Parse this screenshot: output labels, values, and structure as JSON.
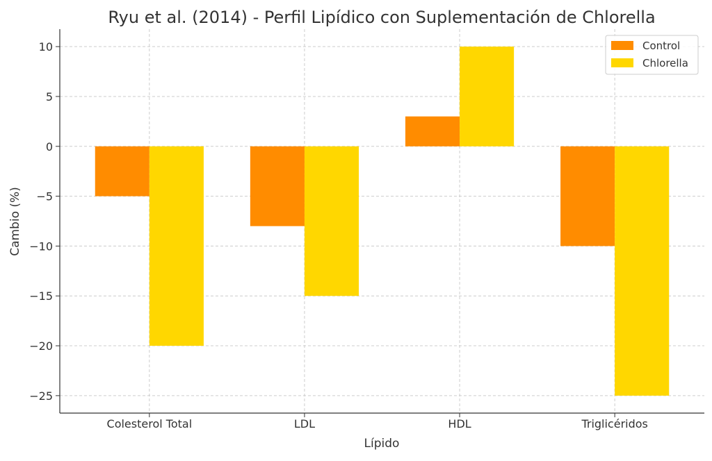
{
  "chart_data": {
    "type": "bar",
    "title": "Ryu et al. (2014) - Perfil Lipídico con Suplementación de Chlorella",
    "xlabel": "Lípido",
    "ylabel": "Cambio (%)",
    "categories": [
      "Colesterol Total",
      "LDL",
      "HDL",
      "Triglicéridos"
    ],
    "series": [
      {
        "name": "Control",
        "values": [
          -5,
          -8,
          3,
          -10
        ],
        "color": "#FF8C00"
      },
      {
        "name": "Chlorella",
        "values": [
          -20,
          -15,
          10,
          -25
        ],
        "color": "#FFD700"
      }
    ],
    "ylim": [
      -26.75,
      11.75
    ],
    "yticks": [
      10,
      5,
      0,
      -5,
      -10,
      -15,
      -20,
      -25
    ],
    "ytick_labels": [
      "10",
      "5",
      "0",
      "−5",
      "−10",
      "−15",
      "−20",
      "−25"
    ],
    "grid": true,
    "legend_position": "top-right"
  }
}
